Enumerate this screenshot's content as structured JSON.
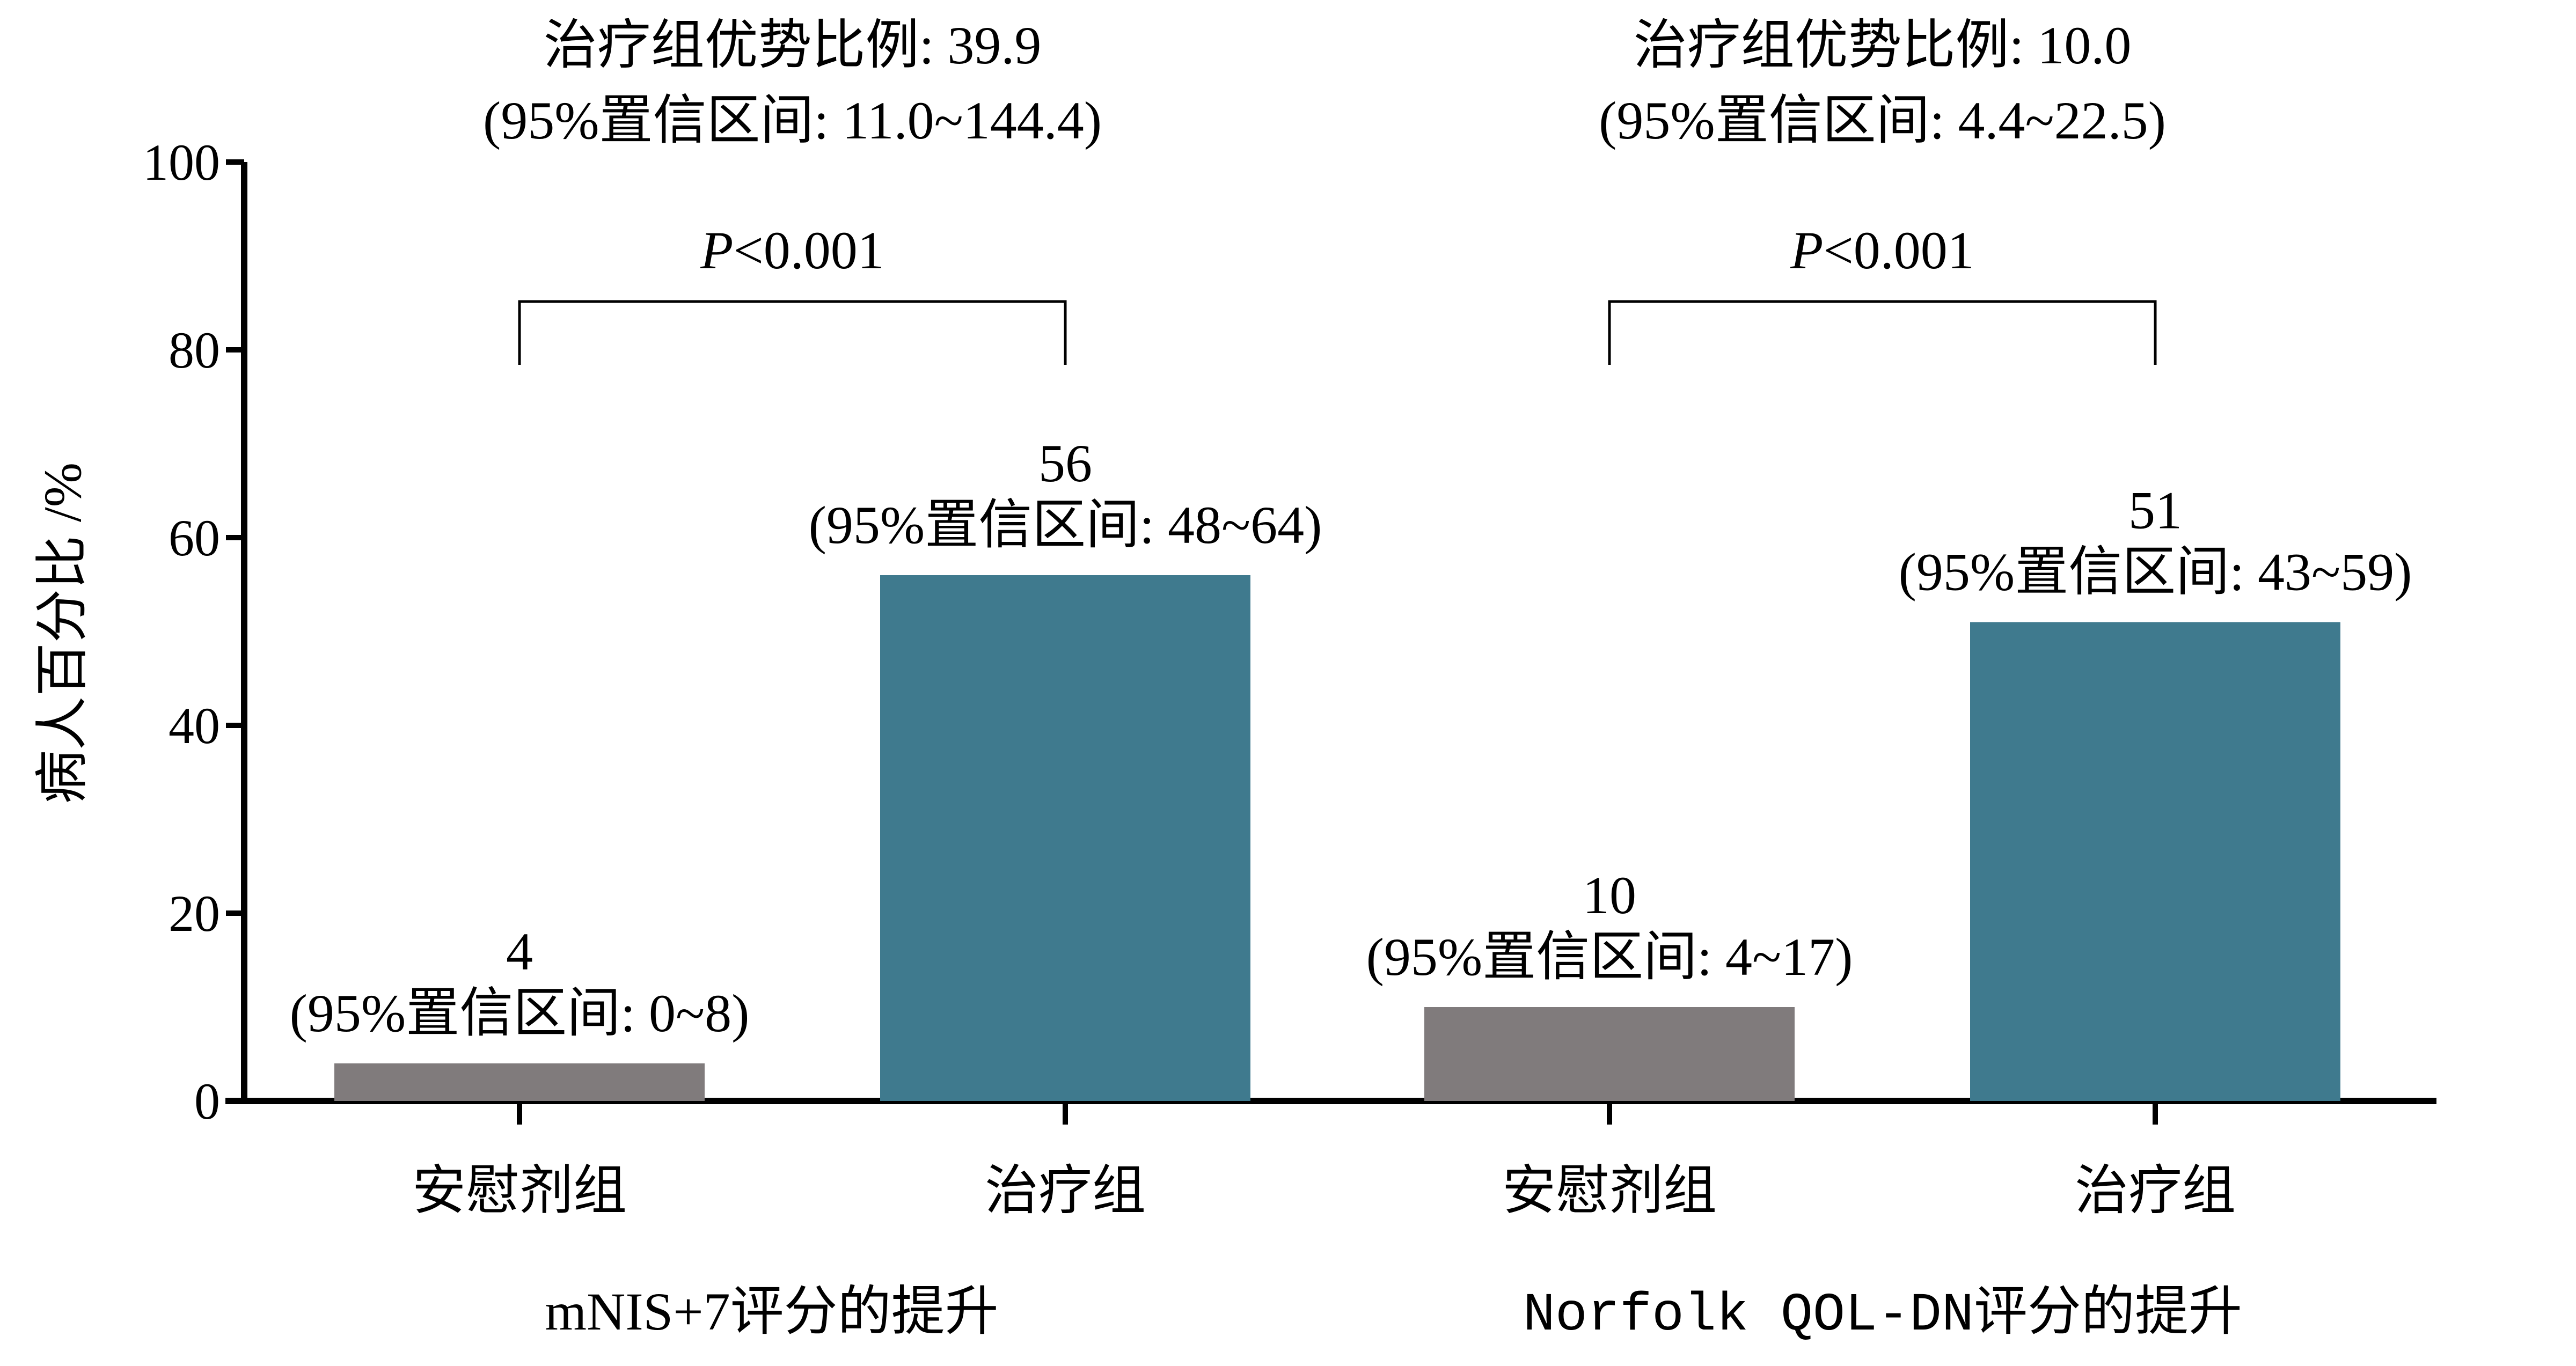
{
  "chart_data": {
    "type": "bar",
    "ylabel": "病人百分比 /%",
    "ylim": [
      0,
      100
    ],
    "yticks": [
      0,
      20,
      40,
      60,
      80,
      100
    ],
    "ytick_labels": [
      "0",
      "20",
      "40",
      "60",
      "80",
      "100"
    ],
    "grid": false,
    "colors": {
      "placebo": "#807b7c",
      "treatment": "#3f7a8e",
      "axis": "#000000"
    },
    "groups": [
      {
        "label": "mNIS+7评分的提升",
        "odds_ratio": "治疗组优势比例: 39.9",
        "odds_ci": "(95%置信区间: 11.0~144.4)",
        "p_italic": "P",
        "p_rest": "<0.001",
        "bars": [
          {
            "category": "安慰剂组",
            "series": "placebo",
            "value": 4,
            "value_label": "4",
            "ci_label": "(95%置信区间: 0~8)"
          },
          {
            "category": "治疗组",
            "series": "treatment",
            "value": 56,
            "value_label": "56",
            "ci_label": "(95%置信区间: 48~64)"
          }
        ]
      },
      {
        "label": "Norfolk QOL-DN评分的提升",
        "odds_ratio": "治疗组优势比例: 10.0",
        "odds_ci": "(95%置信区间: 4.4~22.5)",
        "p_italic": "P",
        "p_rest": "<0.001",
        "bars": [
          {
            "category": "安慰剂组",
            "series": "placebo",
            "value": 10,
            "value_label": "10",
            "ci_label": "(95%置信区间: 4~17)"
          },
          {
            "category": "治疗组",
            "series": "treatment",
            "value": 51,
            "value_label": "51",
            "ci_label": "(95%置信区间: 43~59)"
          }
        ]
      }
    ]
  }
}
